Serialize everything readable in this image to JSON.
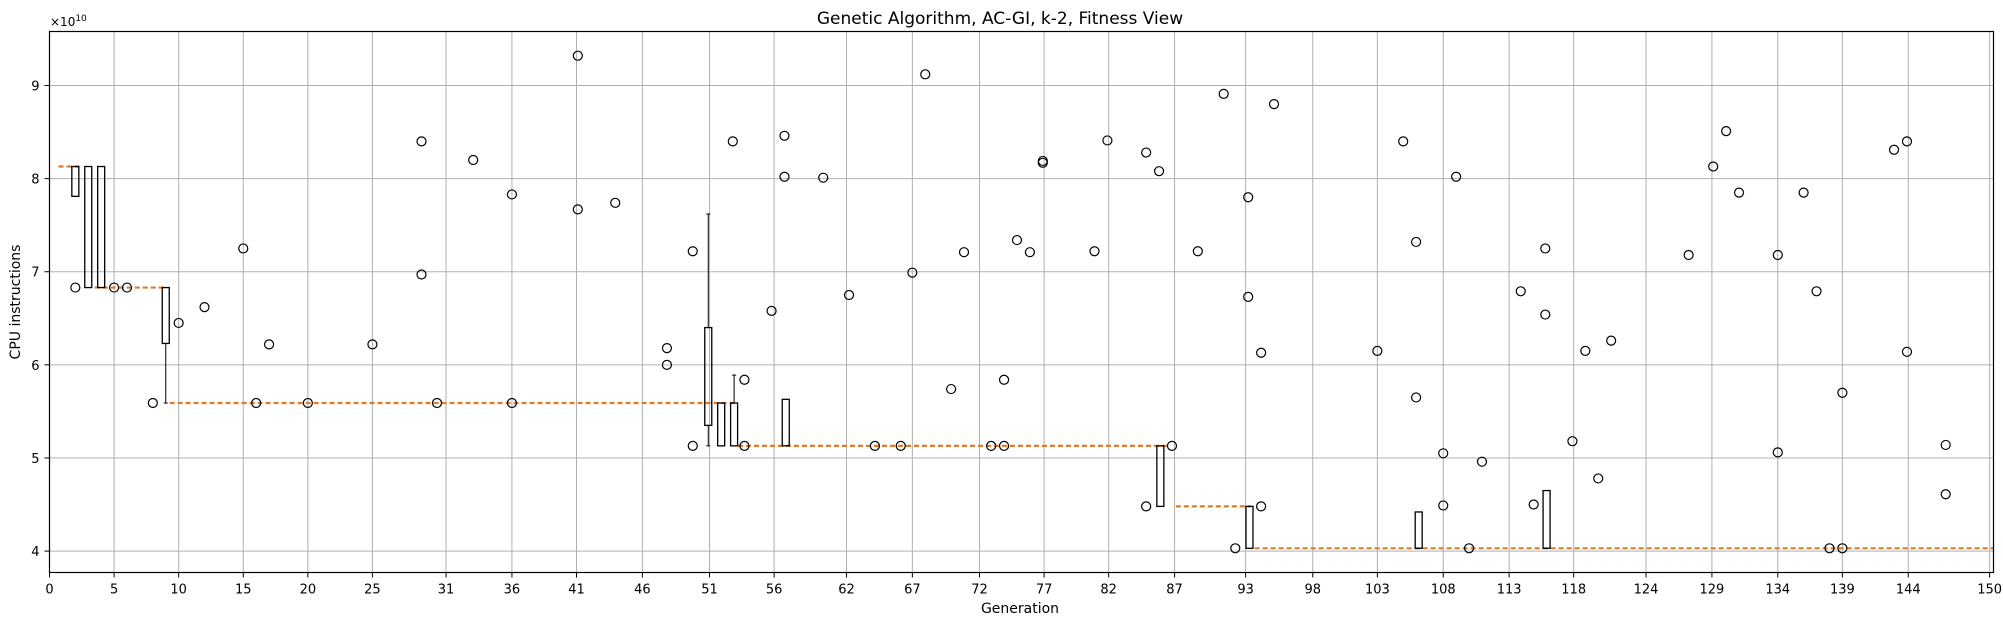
{
  "chart_data": {
    "type": "box",
    "title": "Genetic Algorithm, AC-GI, k-2, Fitness View",
    "xlabel": "Generation",
    "ylabel": "CPU instructions",
    "y_multiplier_label": "×10",
    "y_multiplier_exponent": "10",
    "xlim": [
      0,
      150.5
    ],
    "ylim": [
      3.77,
      9.58
    ],
    "grid": true,
    "colors": {
      "median": "#e07b2a",
      "box": "#000000",
      "grid": "#b0b0b0"
    },
    "x_ticks": [
      {
        "pos": 0,
        "label": "0"
      },
      {
        "pos": 5,
        "label": "5"
      },
      {
        "pos": 10,
        "label": "10"
      },
      {
        "pos": 15,
        "label": "15"
      },
      {
        "pos": 20,
        "label": "20"
      },
      {
        "pos": 25,
        "label": "25"
      },
      {
        "pos": 30.7,
        "label": "31"
      },
      {
        "pos": 35.8,
        "label": "36"
      },
      {
        "pos": 40.8,
        "label": "41"
      },
      {
        "pos": 45.9,
        "label": "46"
      },
      {
        "pos": 51.1,
        "label": "51"
      },
      {
        "pos": 56.1,
        "label": "56"
      },
      {
        "pos": 61.7,
        "label": "62"
      },
      {
        "pos": 66.8,
        "label": "67"
      },
      {
        "pos": 72,
        "label": "72"
      },
      {
        "pos": 77,
        "label": "77"
      },
      {
        "pos": 82,
        "label": "82"
      },
      {
        "pos": 87.1,
        "label": "87"
      },
      {
        "pos": 92.6,
        "label": "93"
      },
      {
        "pos": 97.8,
        "label": "98"
      },
      {
        "pos": 102.8,
        "label": "103"
      },
      {
        "pos": 107.9,
        "label": "108"
      },
      {
        "pos": 113,
        "label": "113"
      },
      {
        "pos": 118,
        "label": "118"
      },
      {
        "pos": 123.6,
        "label": "124"
      },
      {
        "pos": 128.7,
        "label": "129"
      },
      {
        "pos": 133.8,
        "label": "134"
      },
      {
        "pos": 138.8,
        "label": "139"
      },
      {
        "pos": 143.9,
        "label": "144"
      },
      {
        "pos": 150.2,
        "label": "150"
      }
    ],
    "y_ticks": [
      {
        "value": 4,
        "label": "4"
      },
      {
        "value": 5,
        "label": "5"
      },
      {
        "value": 6,
        "label": "6"
      },
      {
        "value": 7,
        "label": "7"
      },
      {
        "value": 8,
        "label": "8"
      },
      {
        "value": 9,
        "label": "9"
      }
    ],
    "median_steps": [
      {
        "x1": 0.7,
        "x2": 2.3,
        "y": 8.13
      },
      {
        "x1": 3.5,
        "x2": 9.0,
        "y": 6.83
      },
      {
        "x1": 9.3,
        "x2": 53.0,
        "y": 5.59
      },
      {
        "x1": 53.3,
        "x2": 86.5,
        "y": 5.13
      },
      {
        "x1": 87.2,
        "x2": 93.0,
        "y": 4.48
      },
      {
        "x1": 93.3,
        "x2": 150.5,
        "y": 4.03
      }
    ],
    "boxes": [
      {
        "x": 2.0,
        "q1": 7.81,
        "q3": 8.13,
        "whisker_low": 7.81,
        "whisker_high": 8.13
      },
      {
        "x": 3.0,
        "q1": 6.83,
        "q3": 8.13,
        "whisker_low": 6.83,
        "whisker_high": 8.13
      },
      {
        "x": 4.0,
        "q1": 6.83,
        "q3": 8.13,
        "whisker_low": 6.83,
        "whisker_high": 8.13
      },
      {
        "x": 9.0,
        "q1": 6.23,
        "q3": 6.83,
        "whisker_low": 5.59,
        "whisker_high": 6.83
      },
      {
        "x": 51.0,
        "q1": 5.35,
        "q3": 6.4,
        "whisker_low": 5.13,
        "whisker_high": 7.62
      },
      {
        "x": 52.0,
        "q1": 5.13,
        "q3": 5.59,
        "whisker_low": 5.13,
        "whisker_high": 5.59
      },
      {
        "x": 53.0,
        "q1": 5.13,
        "q3": 5.59,
        "whisker_low": 5.13,
        "whisker_high": 5.89
      },
      {
        "x": 57.0,
        "q1": 5.13,
        "q3": 5.63,
        "whisker_low": 5.13,
        "whisker_high": 5.63
      },
      {
        "x": 86.0,
        "q1": 4.48,
        "q3": 5.13,
        "whisker_low": 4.48,
        "whisker_high": 5.13
      },
      {
        "x": 92.9,
        "q1": 4.03,
        "q3": 4.48,
        "whisker_low": 4.03,
        "whisker_high": 4.48
      },
      {
        "x": 106.0,
        "q1": 4.03,
        "q3": 4.42,
        "whisker_low": 4.03,
        "whisker_high": 4.42
      },
      {
        "x": 115.9,
        "q1": 4.03,
        "q3": 4.65,
        "whisker_low": 4.03,
        "whisker_high": 4.65
      }
    ],
    "outliers": [
      [
        2.0,
        6.83
      ],
      [
        5.0,
        6.83
      ],
      [
        6.0,
        6.83
      ],
      [
        8.0,
        5.59
      ],
      [
        10.0,
        6.45
      ],
      [
        12.0,
        6.62
      ],
      [
        15.0,
        7.25
      ],
      [
        16.0,
        5.59
      ],
      [
        17.0,
        6.22
      ],
      [
        20.0,
        5.59
      ],
      [
        25.0,
        6.22
      ],
      [
        28.8,
        8.4
      ],
      [
        28.8,
        6.97
      ],
      [
        30.0,
        5.59
      ],
      [
        32.8,
        8.2
      ],
      [
        35.8,
        7.83
      ],
      [
        35.8,
        5.59
      ],
      [
        40.9,
        9.32
      ],
      [
        40.9,
        7.67
      ],
      [
        43.8,
        7.74
      ],
      [
        47.8,
        6.18
      ],
      [
        47.8,
        6.0
      ],
      [
        49.8,
        7.22
      ],
      [
        49.8,
        5.13
      ],
      [
        52.9,
        8.4
      ],
      [
        53.8,
        5.84
      ],
      [
        53.8,
        5.13
      ],
      [
        55.9,
        6.58
      ],
      [
        56.9,
        8.46
      ],
      [
        56.9,
        8.02
      ],
      [
        59.9,
        8.01
      ],
      [
        61.9,
        6.75
      ],
      [
        63.9,
        5.13
      ],
      [
        65.9,
        5.13
      ],
      [
        66.8,
        6.99
      ],
      [
        67.8,
        9.12
      ],
      [
        69.8,
        5.74
      ],
      [
        70.8,
        7.21
      ],
      [
        72.9,
        5.13
      ],
      [
        73.9,
        5.13
      ],
      [
        73.9,
        5.84
      ],
      [
        74.9,
        7.34
      ],
      [
        75.9,
        7.21
      ],
      [
        76.9,
        8.19
      ],
      [
        76.9,
        8.17
      ],
      [
        80.9,
        7.22
      ],
      [
        81.9,
        8.41
      ],
      [
        84.9,
        8.28
      ],
      [
        84.9,
        4.48
      ],
      [
        85.9,
        8.08
      ],
      [
        86.9,
        5.13
      ],
      [
        88.9,
        7.22
      ],
      [
        90.9,
        8.91
      ],
      [
        91.8,
        4.03
      ],
      [
        92.8,
        7.8
      ],
      [
        92.8,
        6.73
      ],
      [
        93.8,
        6.13
      ],
      [
        93.8,
        4.48
      ],
      [
        94.8,
        8.8
      ],
      [
        102.8,
        6.15
      ],
      [
        104.8,
        8.4
      ],
      [
        105.8,
        7.32
      ],
      [
        105.8,
        5.65
      ],
      [
        107.9,
        5.05
      ],
      [
        107.9,
        4.49
      ],
      [
        108.9,
        8.02
      ],
      [
        109.9,
        4.03
      ],
      [
        110.9,
        4.96
      ],
      [
        113.9,
        6.79
      ],
      [
        114.9,
        4.5
      ],
      [
        115.8,
        7.25
      ],
      [
        115.8,
        6.54
      ],
      [
        117.9,
        5.18
      ],
      [
        118.9,
        6.15
      ],
      [
        119.9,
        4.78
      ],
      [
        120.9,
        6.26
      ],
      [
        126.9,
        7.18
      ],
      [
        128.8,
        8.13
      ],
      [
        129.8,
        8.51
      ],
      [
        130.8,
        7.85
      ],
      [
        133.8,
        7.18
      ],
      [
        133.8,
        5.06
      ],
      [
        135.8,
        7.85
      ],
      [
        136.8,
        6.79
      ],
      [
        137.8,
        4.03
      ],
      [
        138.8,
        4.03
      ],
      [
        138.8,
        5.7
      ],
      [
        142.8,
        8.31
      ],
      [
        143.8,
        8.4
      ],
      [
        143.8,
        6.14
      ],
      [
        146.8,
        5.14
      ],
      [
        146.8,
        4.61
      ]
    ]
  }
}
